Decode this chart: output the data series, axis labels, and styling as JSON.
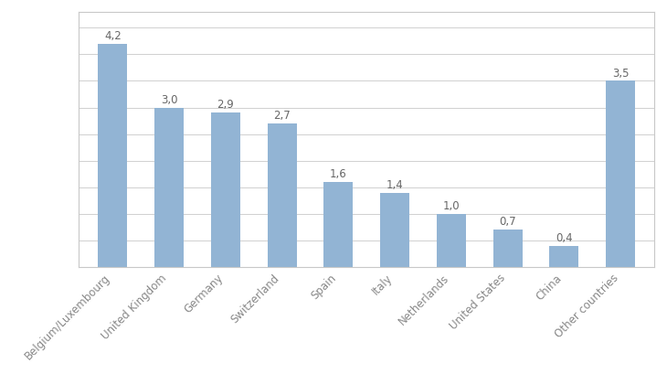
{
  "categories": [
    "Belgium/Luxembourg",
    "United Kingdom",
    "Germany",
    "Switzerland",
    "Spain",
    "Italy",
    "Netherlands",
    "United States",
    "China",
    "Other countries"
  ],
  "values": [
    4.2,
    3.0,
    2.9,
    2.7,
    1.6,
    1.4,
    1.0,
    0.7,
    0.4,
    3.5
  ],
  "labels": [
    "4,2",
    "3,0",
    "2,9",
    "2,7",
    "1,6",
    "1,4",
    "1,0",
    "0,7",
    "0,4",
    "3,5"
  ],
  "bar_color": "#92b4d4",
  "background_color": "#ffffff",
  "grid_color": "#d0d0d0",
  "border_color": "#c8c8c8",
  "ylim": [
    0,
    4.8
  ],
  "yticks": [
    0,
    0.5,
    1.0,
    1.5,
    2.0,
    2.5,
    3.0,
    3.5,
    4.0,
    4.5
  ],
  "label_fontsize": 8.5,
  "tick_fontsize": 8.5,
  "bar_width": 0.52
}
